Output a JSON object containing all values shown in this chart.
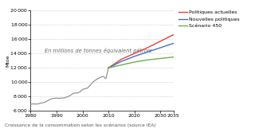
{
  "subtitle": "Croissance de la consommation selon les scénarios (source IEA)",
  "annotation": "En millions de tonnes équivalent pétrole",
  "ylabel": "Mtoe",
  "xlim": [
    1980,
    2035
  ],
  "ylim": [
    6000,
    20000
  ],
  "yticks": [
    6000,
    8000,
    10000,
    12000,
    14000,
    16000,
    18000,
    20000
  ],
  "ytick_labels": [
    "6 000",
    "8 000",
    "10 000",
    "12 000",
    "14 000",
    "16 000",
    "18 000",
    "20 000"
  ],
  "xticks": [
    1980,
    1990,
    2000,
    2010,
    2020,
    2030,
    2035
  ],
  "xtick_labels": [
    "1980",
    "1990",
    "2000",
    "2010",
    "2020",
    "2030",
    "2035"
  ],
  "historical_x": [
    1980,
    1981,
    1982,
    1983,
    1984,
    1985,
    1986,
    1987,
    1988,
    1989,
    1990,
    1991,
    1992,
    1993,
    1994,
    1995,
    1996,
    1997,
    1998,
    1999,
    2000,
    2001,
    2002,
    2003,
    2004,
    2005,
    2006,
    2007,
    2008,
    2009,
    2010
  ],
  "historical_y": [
    6900,
    7000,
    6950,
    7000,
    7100,
    7150,
    7300,
    7500,
    7700,
    7750,
    7800,
    7750,
    7800,
    7800,
    7950,
    8100,
    8350,
    8500,
    8500,
    8650,
    9000,
    9100,
    9200,
    9600,
    10000,
    10300,
    10500,
    10700,
    10800,
    10500,
    12000
  ],
  "scenario_x": [
    2010,
    2015,
    2020,
    2025,
    2030,
    2035
  ],
  "politiques_actuelles_y": [
    12000,
    13200,
    14000,
    14800,
    15700,
    16600
  ],
  "nouvelles_politiques_y": [
    12000,
    12900,
    13600,
    14200,
    14800,
    15400
  ],
  "scenario_450_y": [
    12000,
    12400,
    12800,
    13100,
    13300,
    13500
  ],
  "color_historical": "#888888",
  "color_politiques": "#e8403a",
  "color_nouvelles": "#4472c4",
  "color_scenario": "#70ad47",
  "legend_labels": [
    "Politiques actuelles",
    "Nouvelles politiques",
    "Scénario 450"
  ],
  "background_color": "#ffffff",
  "grid_color": "#cccccc"
}
